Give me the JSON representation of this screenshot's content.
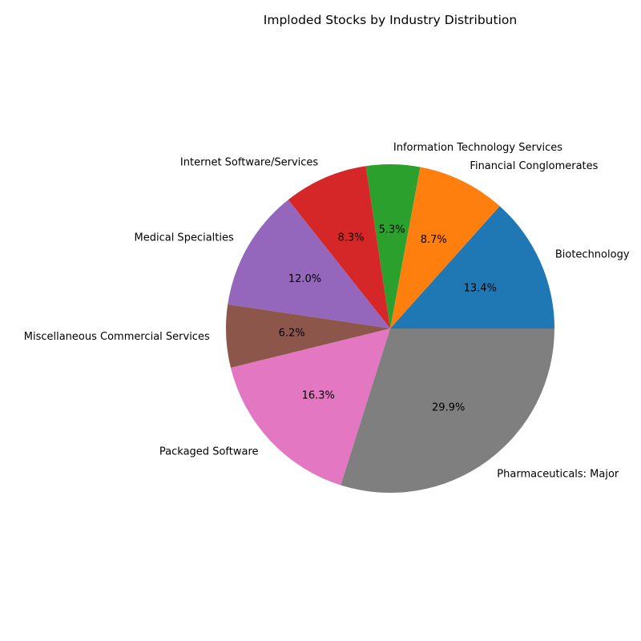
{
  "chart_data": {
    "type": "pie",
    "title": "Imploded Stocks by Industry Distribution",
    "start_angle_deg": 0,
    "direction": "counterclockwise",
    "slices": [
      {
        "label": "Biotechnology",
        "value": 13.4,
        "pct_label": "13.4%",
        "color": "#1f77b4"
      },
      {
        "label": "Financial Conglomerates",
        "value": 8.7,
        "pct_label": "8.7%",
        "color": "#ff7f0e"
      },
      {
        "label": "Information Technology Services",
        "value": 5.3,
        "pct_label": "5.3%",
        "color": "#2ca02c"
      },
      {
        "label": "Internet Software/Services",
        "value": 8.3,
        "pct_label": "8.3%",
        "color": "#d62728"
      },
      {
        "label": "Medical Specialties",
        "value": 12.0,
        "pct_label": "12.0%",
        "color": "#9467bd"
      },
      {
        "label": "Miscellaneous Commercial Services",
        "value": 6.2,
        "pct_label": "6.2%",
        "color": "#8c564b"
      },
      {
        "label": "Packaged Software",
        "value": 16.3,
        "pct_label": "16.3%",
        "color": "#e377c2"
      },
      {
        "label": "Pharmaceuticals: Major",
        "value": 29.9,
        "pct_label": "29.9%",
        "color": "#7f7f7f"
      }
    ]
  }
}
